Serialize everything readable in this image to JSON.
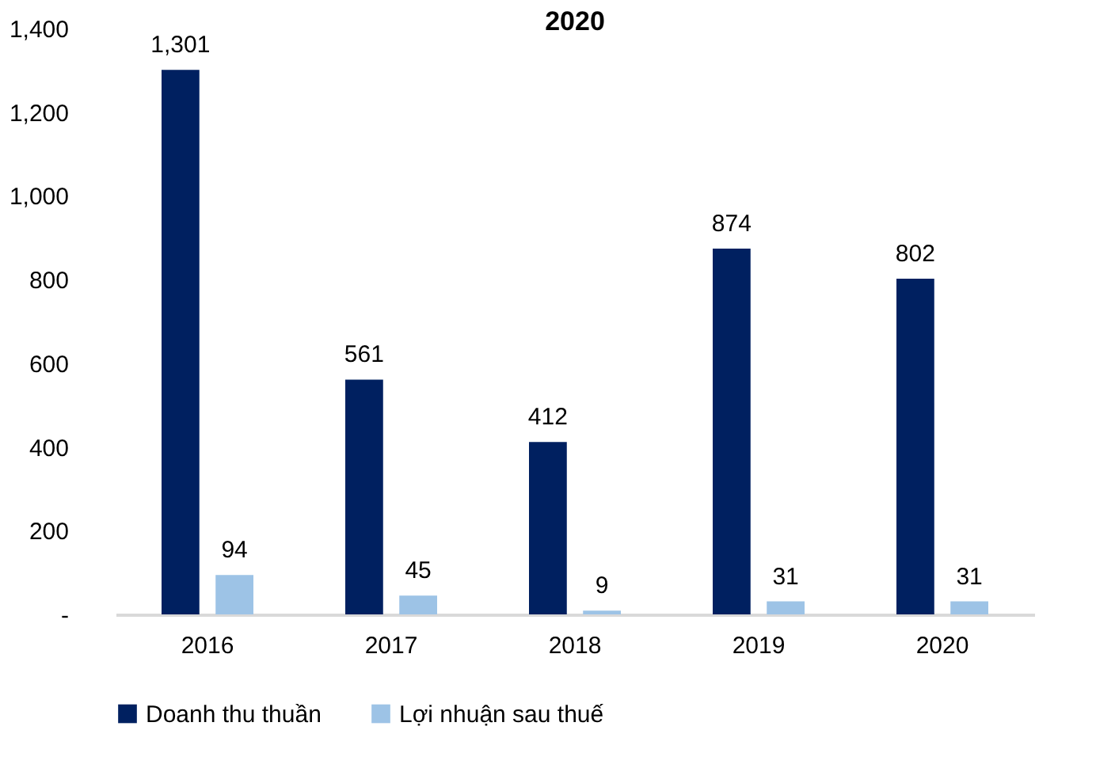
{
  "chart_data": {
    "type": "bar",
    "title": "2020",
    "categories": [
      "2016",
      "2017",
      "2018",
      "2019",
      "2020"
    ],
    "series": [
      {
        "name": "Doanh thu thuần",
        "color": "#002060",
        "values": [
          1301,
          561,
          412,
          874,
          802
        ],
        "value_labels": [
          "1,301",
          "561",
          "412",
          "874",
          "802"
        ]
      },
      {
        "name": "Lợi nhuận sau thuế",
        "color": "#9dc3e6",
        "values": [
          94,
          45,
          9,
          31,
          31
        ],
        "value_labels": [
          "94",
          "45",
          "9",
          "31",
          "31"
        ]
      }
    ],
    "ylim": [
      0,
      1400
    ],
    "yticks": [
      {
        "value": 0,
        "label": "-"
      },
      200,
      400,
      600,
      800,
      {
        "value": 1000,
        "label": "1,000"
      },
      {
        "value": 1200,
        "label": "1,200"
      },
      {
        "value": 1400,
        "label": "1,400"
      }
    ],
    "legend": "bottom",
    "grid": false
  }
}
